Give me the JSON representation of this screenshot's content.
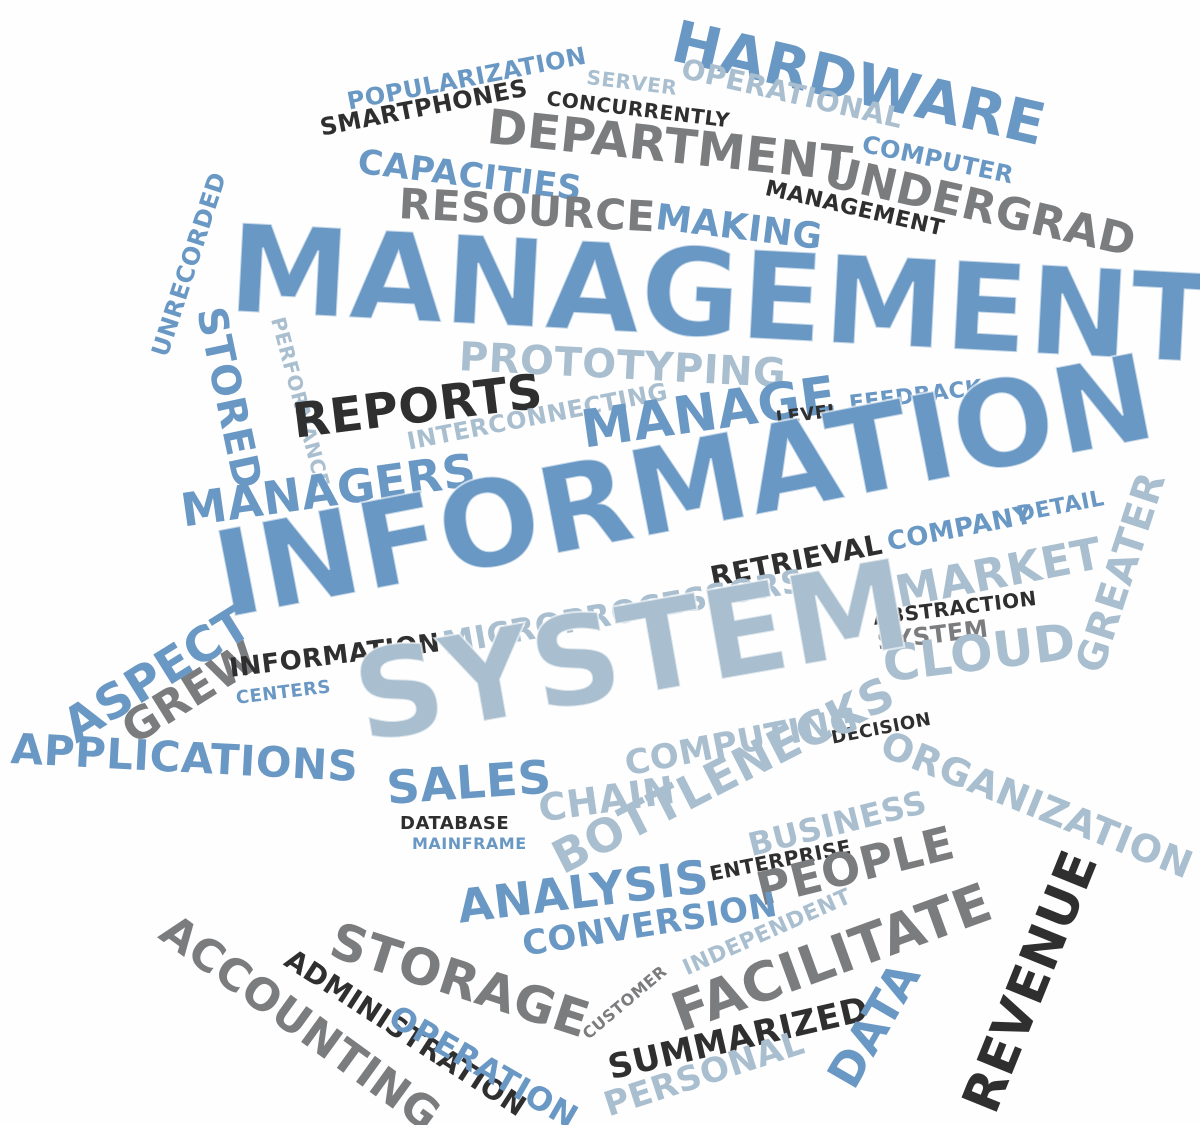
{
  "word_cloud": {
    "colors": {
      "blue": "#6a98c4",
      "lightblue": "#a9bfcf",
      "gray": "#7b7c7e",
      "black": "#2f2f30"
    },
    "words": {
      "management": "MANAGEMENT",
      "information_big": "INFORMATION",
      "system_big": "SYSTEM",
      "hardware": "HARDWARE",
      "popularization": "POPULARIZATION",
      "server": "SERVER",
      "operational": "OPERATIONAL",
      "smartphones": "SMARTPHONES",
      "concurrently": "CONCURRENTLY",
      "department": "DEPARTMENT",
      "computer": "COMPUTER",
      "capacities": "CAPACITIES",
      "undergrad": "UNDERGRAD",
      "management_small": "MANAGEMENT",
      "resource": "RESOURCE",
      "making": "MAKING",
      "unrecorded": "UNRECORDED",
      "stored": "STORED",
      "performance": "PERFORMANCE",
      "prototyping": "PROTOTYPING",
      "reports": "REPORTS",
      "interconnecting": "INTERCONNECTING",
      "manage": "MANAGE",
      "level": "LEVEL",
      "feedback": "FEEDBACK",
      "managers": "MANAGERS",
      "company": "COMPANY",
      "detail": "DETAIL",
      "retrieval": "RETRIEVAL",
      "market": "MARKET",
      "aspect": "ASPECT",
      "greater": "GREATER",
      "microprocessors": "MICROPROCESSORS",
      "abstraction": "ABSTRACTION",
      "system_small": "SYSTEM",
      "grew": "GREW",
      "information_small": "INFORMATION",
      "centers": "CENTERS",
      "cloud": "CLOUD",
      "applications": "APPLICATIONS",
      "decision": "DECISION",
      "computing": "COMPUTING",
      "sales": "SALES",
      "organization": "ORGANIZATION",
      "bottlenecks": "BOTTLENECKS",
      "database": "DATABASE",
      "chain": "CHAIN",
      "mainframe": "MAINFRAME",
      "business": "BUSINESS",
      "enterprise": "ENTERPRISE",
      "people": "PEOPLE",
      "analysis": "ANALYSIS",
      "conversion": "CONVERSION",
      "revenue": "REVENUE",
      "independent": "INDEPENDENT",
      "storage": "STORAGE",
      "accounting": "ACCOUNTING",
      "administration": "ADMINISTRATION",
      "customer": "CUSTOMER",
      "facilitate": "FACILITATE",
      "operation": "OPERATION",
      "summarized": "SUMMARIZED",
      "data": "DATA",
      "personal": "PERSONAL"
    }
  }
}
